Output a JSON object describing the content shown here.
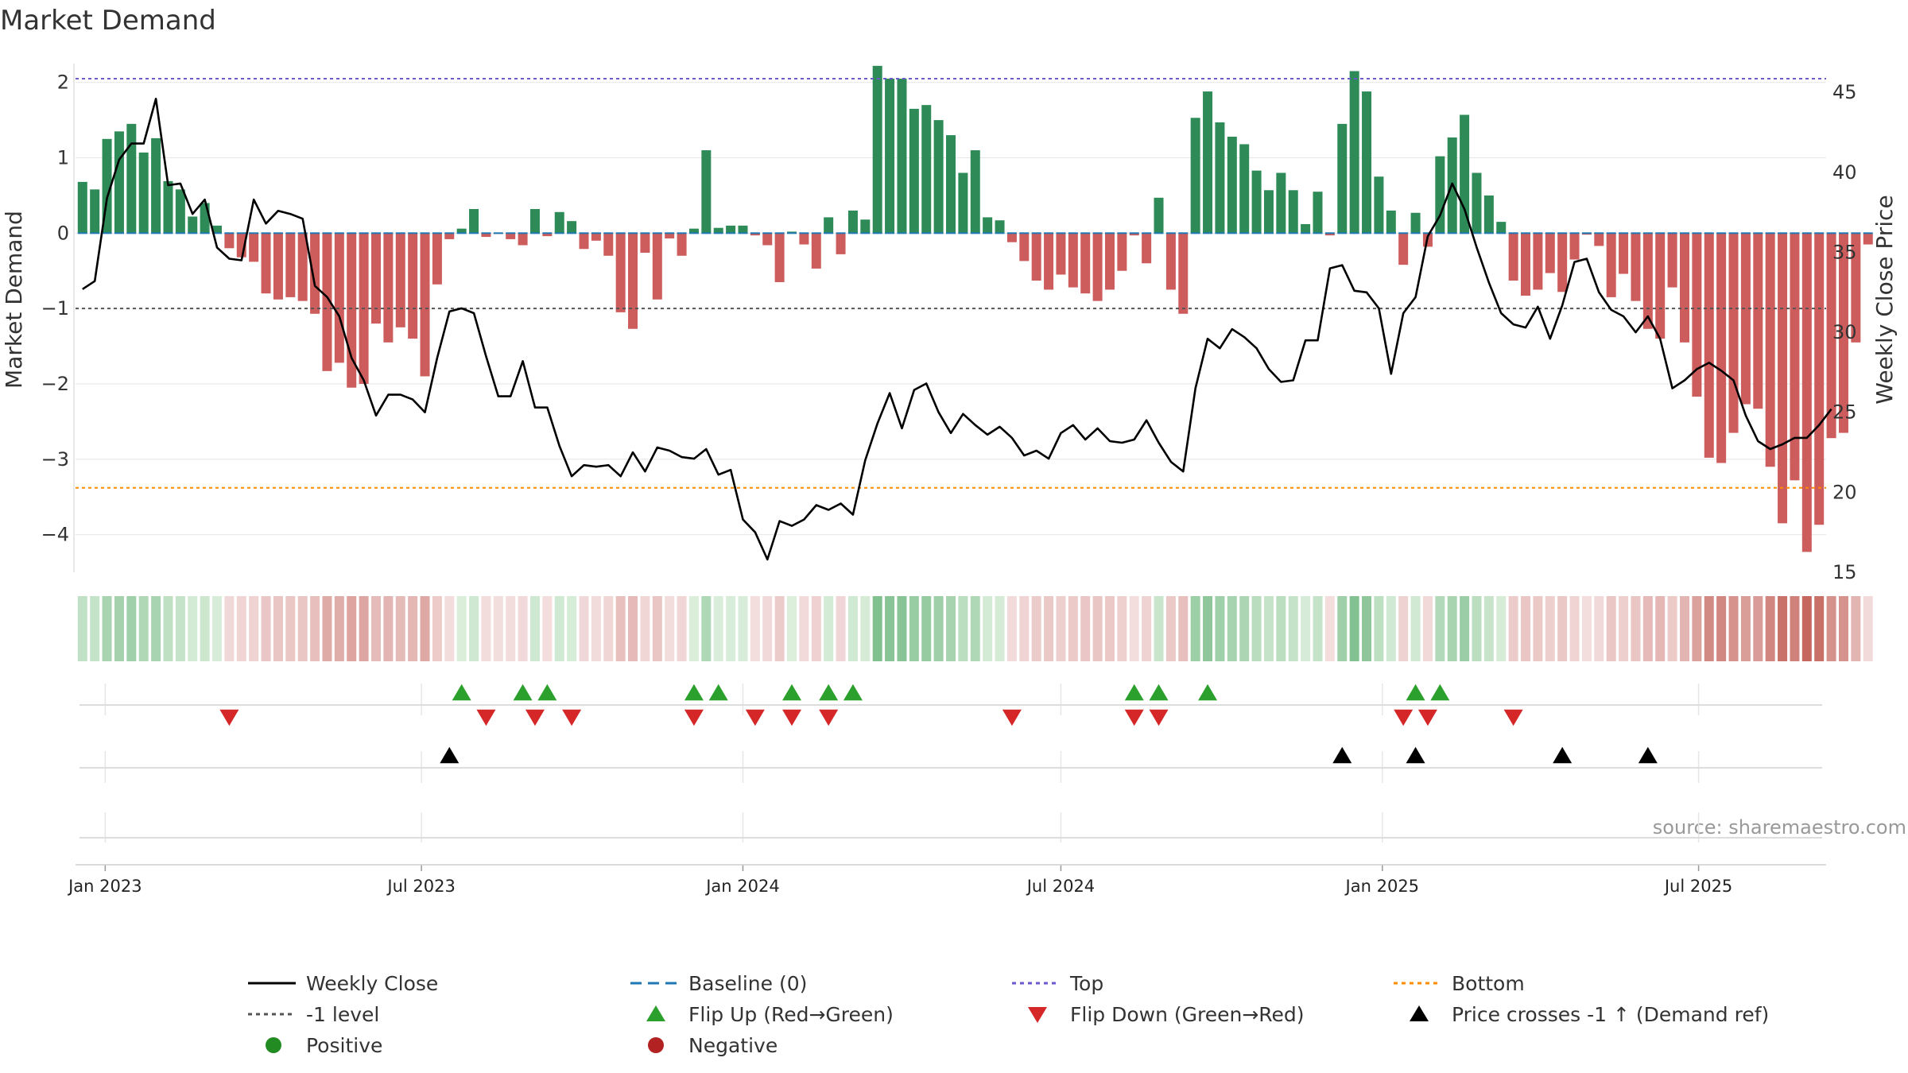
{
  "colors": {
    "positive_bar": "#2e8b57",
    "negative_bar": "#cd5c5c",
    "price_line": "#000000",
    "baseline": "#1f77b4",
    "top_line": "#6a5acd",
    "bottom_line": "#ff8c00",
    "minus_one": "#555555",
    "flip_up": "#2ca02c",
    "flip_down": "#d62728",
    "cross_marker": "#000000",
    "positive_dot": "#228b22",
    "negative_dot": "#b22222",
    "grid": "#e6e6e6"
  },
  "chart_data": {
    "type": "bar",
    "title": "Market Demand",
    "ylabel_left": "Market Demand",
    "ylabel_right": "Weekly Close Price",
    "source": "source: sharemaestro.com",
    "start_date": "2022-12-19",
    "period_days": 7,
    "left_ylim": [
      -4.5,
      2.25
    ],
    "left_yticks": [
      2,
      1,
      0,
      -1,
      -2,
      -3,
      -4
    ],
    "left_ytick_labels": [
      "2",
      "1",
      "0",
      "−1",
      "−2",
      "−3",
      "−4"
    ],
    "right_ylim": [
      15,
      46.8
    ],
    "right_yticks": [
      45,
      40,
      35,
      30,
      25,
      20,
      15
    ],
    "xlim": [
      "2022-12-15",
      "2025-09-12"
    ],
    "xticks": [
      {
        "date": "2023-01-01",
        "label": "Jan 2023"
      },
      {
        "date": "2023-07-01",
        "label": "Jul 2023"
      },
      {
        "date": "2024-01-01",
        "label": "Jan 2024"
      },
      {
        "date": "2024-07-01",
        "label": "Jul 2024"
      },
      {
        "date": "2025-01-01",
        "label": "Jan 2025"
      },
      {
        "date": "2025-07-01",
        "label": "Jul 2025"
      }
    ],
    "reference_lines": {
      "top": 2.05,
      "bottom": -3.38,
      "minus_one": -1,
      "baseline": 0
    },
    "series": [
      {
        "name": "Market Demand",
        "values": [
          0.68,
          0.58,
          1.25,
          1.35,
          1.45,
          1.07,
          1.26,
          0.69,
          0.58,
          0.22,
          0.4,
          0.1,
          -0.2,
          -0.32,
          -0.38,
          -0.8,
          -0.88,
          -0.85,
          -0.9,
          -1.07,
          -1.83,
          -1.72,
          -2.05,
          -2.0,
          -1.2,
          -1.45,
          -1.25,
          -1.4,
          -1.9,
          -0.68,
          -0.08,
          0.06,
          0.32,
          -0.05,
          -0.01,
          -0.08,
          -0.16,
          0.32,
          -0.04,
          0.28,
          0.16,
          -0.21,
          -0.1,
          -0.3,
          -1.05,
          -1.27,
          -0.26,
          -0.88,
          -0.07,
          -0.3,
          0.06,
          1.1,
          0.07,
          0.1,
          0.1,
          -0.03,
          -0.16,
          -0.65,
          0.02,
          -0.15,
          -0.47,
          0.21,
          -0.28,
          0.3,
          0.18,
          2.22,
          2.05,
          2.05,
          1.65,
          1.7,
          1.5,
          1.3,
          0.8,
          1.1,
          0.21,
          0.17,
          -0.12,
          -0.37,
          -0.63,
          -0.75,
          -0.55,
          -0.72,
          -0.8,
          -0.9,
          -0.75,
          -0.5,
          -0.03,
          -0.4,
          0.47,
          -0.75,
          -1.07,
          1.53,
          1.88,
          1.47,
          1.28,
          1.18,
          0.83,
          0.57,
          0.8,
          0.57,
          0.12,
          0.55,
          -0.03,
          1.45,
          2.15,
          1.88,
          0.75,
          0.3,
          -0.42,
          0.27,
          -0.18,
          1.02,
          1.27,
          1.57,
          0.8,
          0.5,
          0.15,
          -0.63,
          -0.83,
          -0.75,
          -0.53,
          -0.78,
          -0.35,
          -0.02,
          -0.17,
          -0.85,
          -0.54,
          -0.9,
          -1.27,
          -1.4,
          -0.72,
          -1.45,
          -2.17,
          -2.98,
          -3.05,
          -2.65,
          -2.27,
          -2.33,
          -3.1,
          -3.85,
          -3.28,
          -4.23,
          -3.87,
          -2.72,
          -2.65,
          -1.45,
          -0.15
        ]
      },
      {
        "name": "Weekly Close",
        "values": [
          32.7,
          33.2,
          38.4,
          40.8,
          41.8,
          41.8,
          44.6,
          39.2,
          39.3,
          37.4,
          38.3,
          35.3,
          34.6,
          34.5,
          38.3,
          36.8,
          37.6,
          37.4,
          37.1,
          32.9,
          32.2,
          31.0,
          28.4,
          27.0,
          24.8,
          26.1,
          26.1,
          25.8,
          25.0,
          28.4,
          31.3,
          31.5,
          31.2,
          28.5,
          26.0,
          26.0,
          28.2,
          25.3,
          25.3,
          22.9,
          21.0,
          21.7,
          21.6,
          21.7,
          21.0,
          22.5,
          21.3,
          22.8,
          22.6,
          22.2,
          22.1,
          22.7,
          21.1,
          21.4,
          18.3,
          17.5,
          15.8,
          18.2,
          17.9,
          18.3,
          19.2,
          18.9,
          19.3,
          18.6,
          22.0,
          24.3,
          26.2,
          24.0,
          26.4,
          26.8,
          25.0,
          23.7,
          24.9,
          24.2,
          23.6,
          24.1,
          23.4,
          22.3,
          22.6,
          22.1,
          23.7,
          24.2,
          23.3,
          24.0,
          23.2,
          23.1,
          23.3,
          24.5,
          23.1,
          21.9,
          21.3,
          26.5,
          29.6,
          29.0,
          30.2,
          29.7,
          29.0,
          27.7,
          26.9,
          27.0,
          29.5,
          29.5,
          34.0,
          34.2,
          32.6,
          32.5,
          31.5,
          27.4,
          31.2,
          32.2,
          36.0,
          37.3,
          39.3,
          37.7,
          35.3,
          33.1,
          31.2,
          30.5,
          30.3,
          31.6,
          29.6,
          31.7,
          34.4,
          34.6,
          32.5,
          31.4,
          31.0,
          30.0,
          31.0,
          29.6,
          26.5,
          27.0,
          27.7,
          28.1,
          27.6,
          27.0,
          24.8,
          23.2,
          22.7,
          23.0,
          23.4,
          23.4,
          24.2,
          25.2
        ]
      }
    ],
    "flip_up_indices": [
      31,
      36,
      38,
      50,
      52,
      58,
      61,
      63,
      86,
      88,
      92,
      109,
      111
    ],
    "flip_down_indices": [
      12,
      33,
      37,
      40,
      50,
      55,
      58,
      61,
      76,
      86,
      88,
      108,
      110,
      117
    ],
    "cross_indices": [
      30,
      103,
      109,
      121,
      128
    ],
    "legend": [
      {
        "label": "Weekly Close",
        "kind": "line"
      },
      {
        "label": "Baseline (0)",
        "kind": "dash-blue"
      },
      {
        "label": "Top",
        "kind": "dot-purple"
      },
      {
        "label": "Bottom",
        "kind": "dot-orange"
      },
      {
        "label": "-1 level",
        "kind": "dot-gray"
      },
      {
        "label": "Flip Up (Red→Green)",
        "kind": "tri-up-green"
      },
      {
        "label": "Flip Down (Green→Red)",
        "kind": "tri-down-red"
      },
      {
        "label": "Price crosses -1 ↑ (Demand ref)",
        "kind": "tri-up-black"
      },
      {
        "label": "Positive",
        "kind": "dot-green"
      },
      {
        "label": "Negative",
        "kind": "dot-red"
      }
    ]
  }
}
